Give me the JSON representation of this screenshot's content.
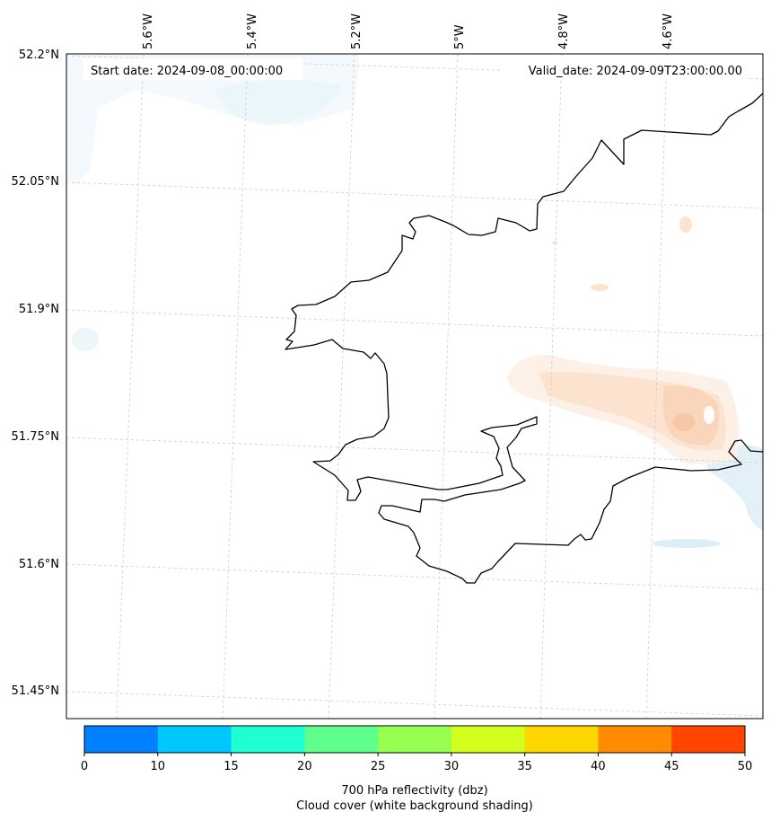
{
  "header": {
    "start_date": "Start date: 2024-09-08_00:00:00",
    "valid_date": "Valid_date: 2024-09-09T23:00:00.00"
  },
  "axes": {
    "lon_labels": [
      "5.6°W",
      "5.4°W",
      "5.2°W",
      "5°W",
      "4.8°W",
      "4.6°W"
    ],
    "lat_labels": [
      "52.2°N",
      "52.05°N",
      "51.9°N",
      "51.75°N",
      "51.6°N",
      "51.45°N"
    ]
  },
  "colorbar": {
    "ticks": [
      "0",
      "10",
      "15",
      "20",
      "25",
      "30",
      "35",
      "40",
      "45",
      "50"
    ],
    "colors": [
      "#0080ff",
      "#00c8ff",
      "#1effd2",
      "#5eff8c",
      "#96ff50",
      "#d4ff1e",
      "#ffd700",
      "#ff8c00",
      "#ff4500"
    ],
    "label_line1": "700 hPa reflectivity (dbz)",
    "label_line2": "Cloud cover (white background shading)"
  }
}
